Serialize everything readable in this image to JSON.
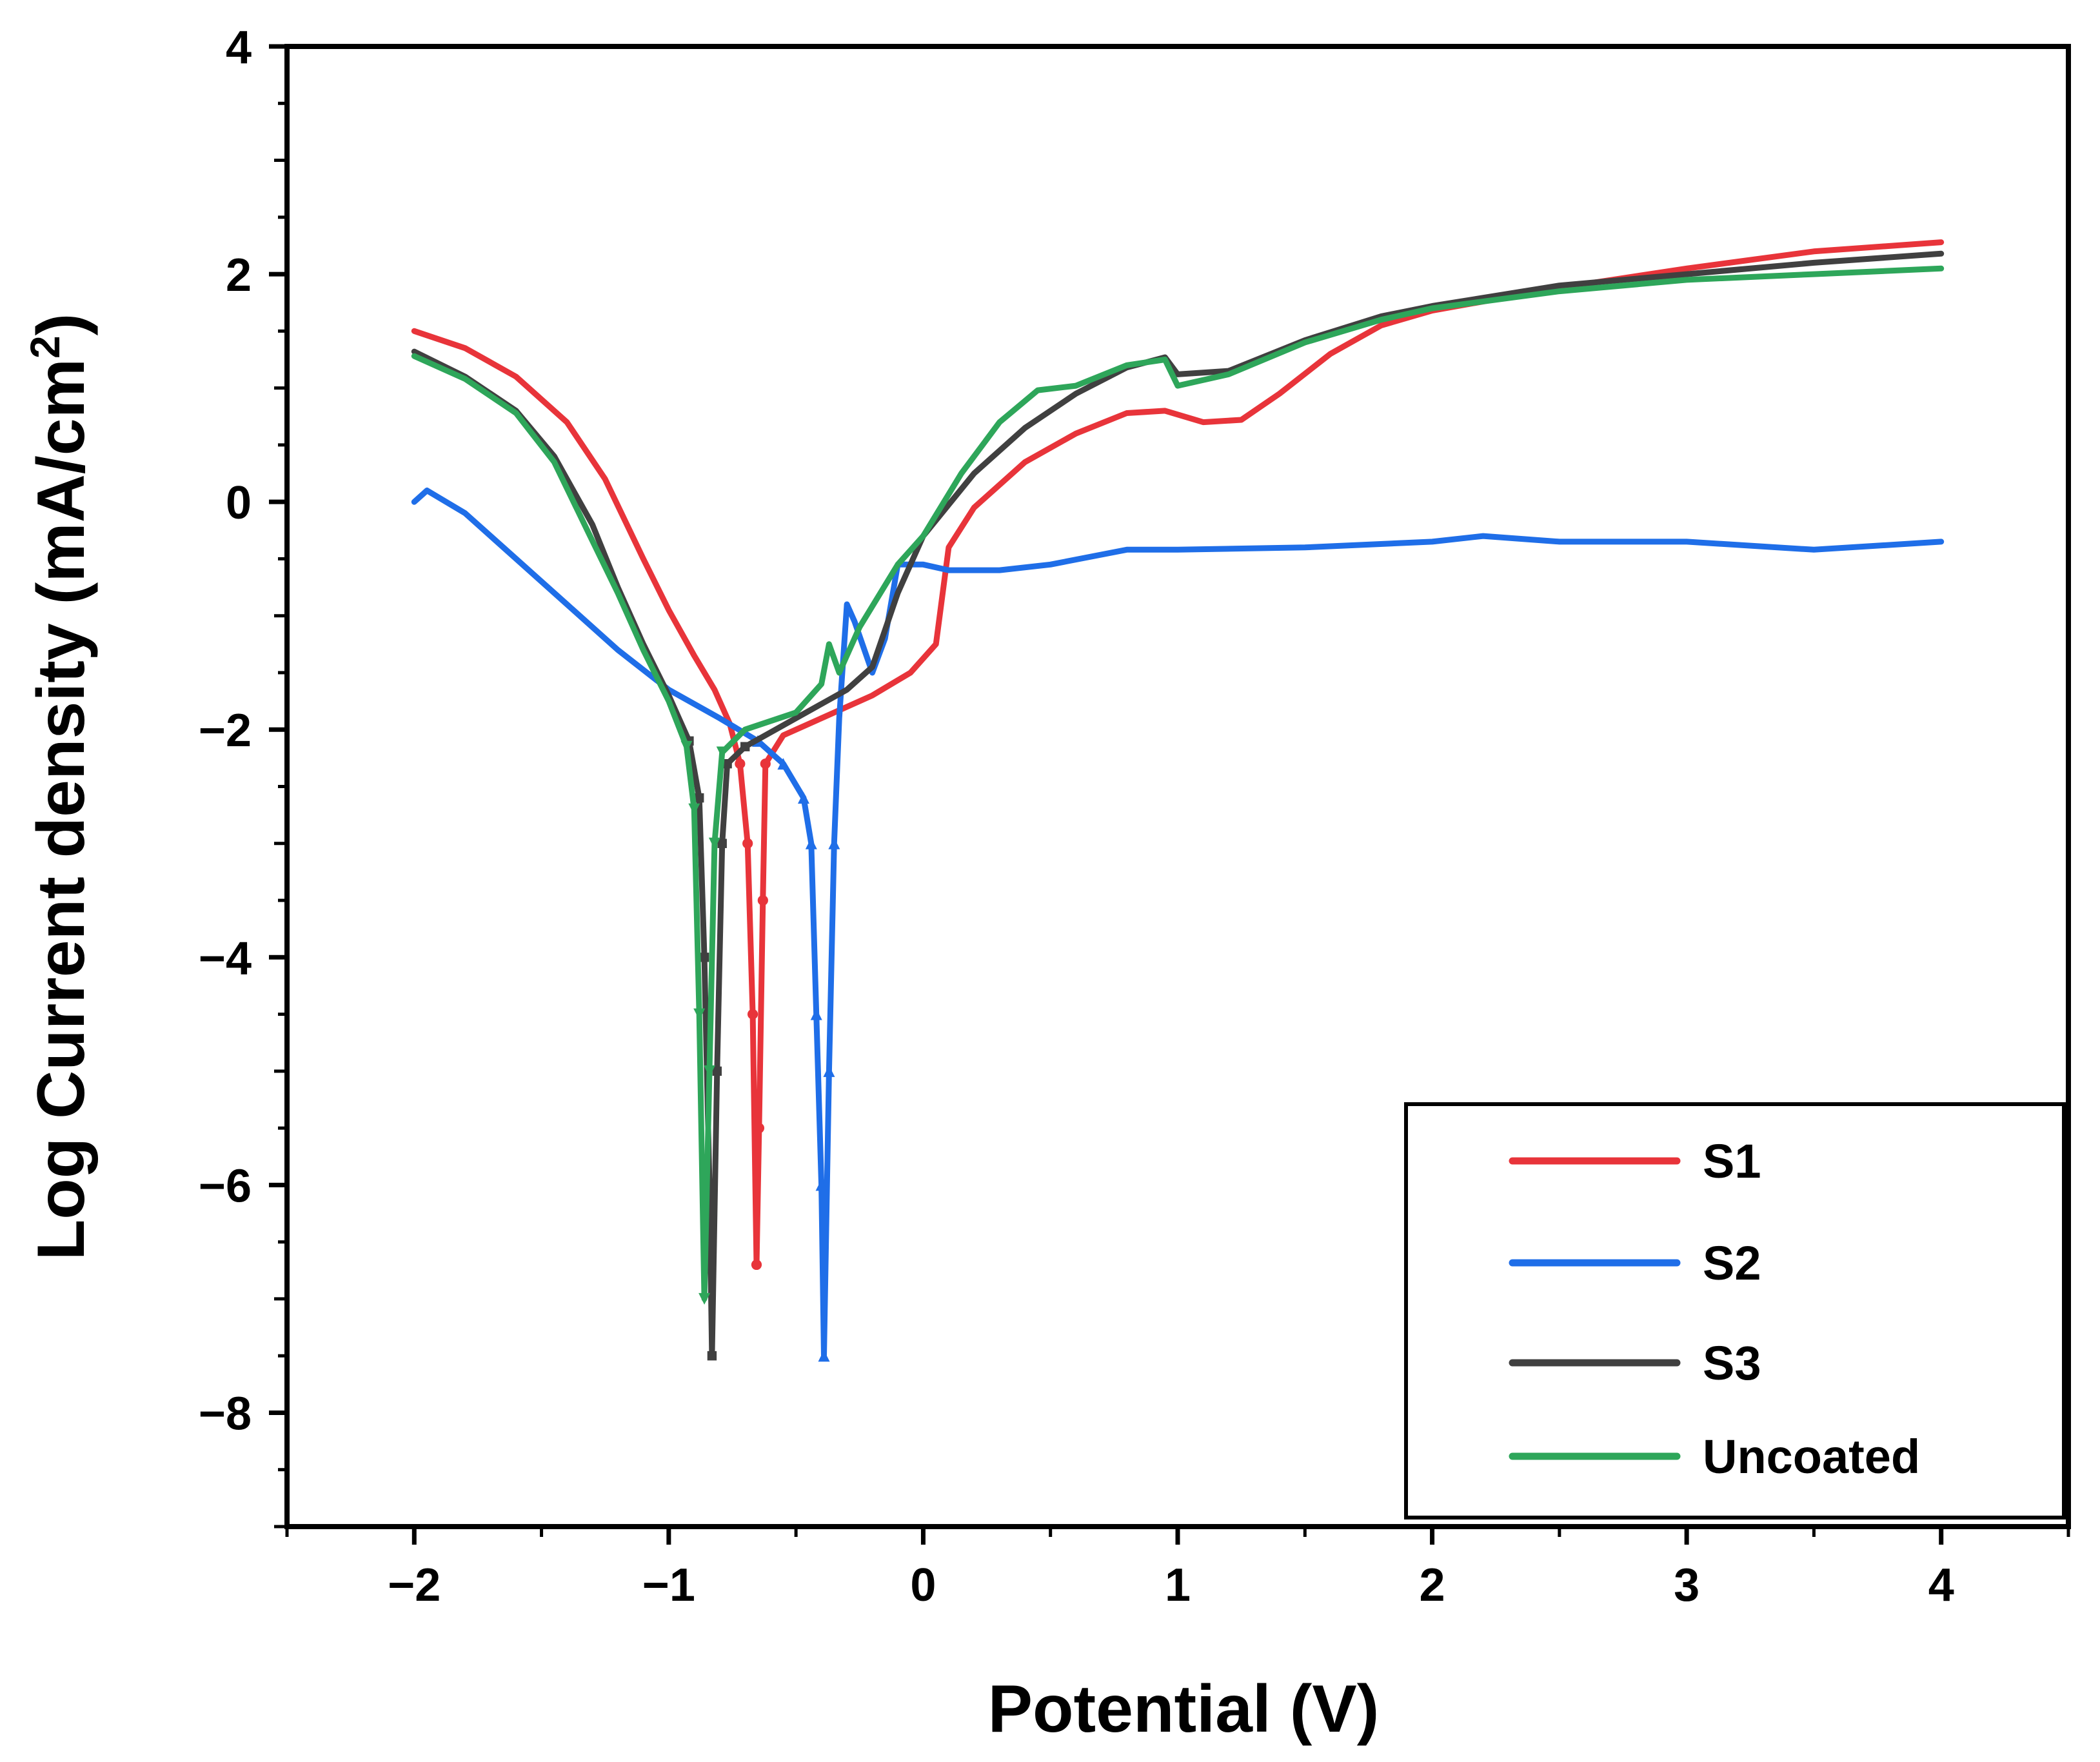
{
  "chart_data": {
    "type": "line",
    "xlabel": "Potential (V)",
    "ylabel_main": "Log Current density (mA/cm",
    "ylabel_sup": "2",
    "ylabel_end": ")",
    "xlim": [
      -2.5,
      4.5
    ],
    "ylim": [
      -9,
      4
    ],
    "xticks": [
      {
        "value": -2,
        "label": "−2"
      },
      {
        "value": -1,
        "label": "−1"
      },
      {
        "value": 0,
        "label": "0"
      },
      {
        "value": 1,
        "label": "1"
      },
      {
        "value": 2,
        "label": "2"
      },
      {
        "value": 3,
        "label": "3"
      },
      {
        "value": 4,
        "label": "4"
      }
    ],
    "yticks": [
      {
        "value": 4,
        "label": "4"
      },
      {
        "value": 2,
        "label": "2"
      },
      {
        "value": 0,
        "label": "0"
      },
      {
        "value": -2,
        "label": "−2"
      },
      {
        "value": -4,
        "label": "−4"
      },
      {
        "value": -6,
        "label": "−6"
      },
      {
        "value": -8,
        "label": "−8"
      }
    ],
    "legend_position": "bottom-right",
    "series": [
      {
        "name": "S1",
        "color": "#e8343a",
        "marker": "circle",
        "points": [
          [
            -2.0,
            1.5
          ],
          [
            -1.8,
            1.35
          ],
          [
            -1.6,
            1.1
          ],
          [
            -1.4,
            0.7
          ],
          [
            -1.25,
            0.2
          ],
          [
            -1.1,
            -0.5
          ],
          [
            -1.0,
            -0.95
          ],
          [
            -0.9,
            -1.35
          ],
          [
            -0.82,
            -1.65
          ],
          [
            -0.76,
            -1.95
          ],
          [
            -0.72,
            -2.3
          ],
          [
            -0.69,
            -3.0
          ],
          [
            -0.67,
            -4.5
          ],
          [
            -0.655,
            -6.7
          ],
          [
            -0.645,
            -5.5
          ],
          [
            -0.63,
            -3.5
          ],
          [
            -0.62,
            -2.3
          ],
          [
            -0.55,
            -2.05
          ],
          [
            -0.4,
            -1.9
          ],
          [
            -0.2,
            -1.7
          ],
          [
            -0.05,
            -1.5
          ],
          [
            0.05,
            -1.25
          ],
          [
            0.1,
            -0.4
          ],
          [
            0.2,
            -0.05
          ],
          [
            0.4,
            0.35
          ],
          [
            0.6,
            0.6
          ],
          [
            0.8,
            0.78
          ],
          [
            0.95,
            0.8
          ],
          [
            1.1,
            0.7
          ],
          [
            1.25,
            0.72
          ],
          [
            1.4,
            0.95
          ],
          [
            1.6,
            1.3
          ],
          [
            1.8,
            1.55
          ],
          [
            2.0,
            1.68
          ],
          [
            2.5,
            1.88
          ],
          [
            3.0,
            2.05
          ],
          [
            3.5,
            2.2
          ],
          [
            4.0,
            2.28
          ]
        ]
      },
      {
        "name": "S2",
        "color": "#1f6ee8",
        "marker": "triangle",
        "points": [
          [
            -2.0,
            0.0
          ],
          [
            -1.95,
            0.1
          ],
          [
            -1.8,
            -0.1
          ],
          [
            -1.6,
            -0.5
          ],
          [
            -1.4,
            -0.9
          ],
          [
            -1.2,
            -1.3
          ],
          [
            -1.0,
            -1.65
          ],
          [
            -0.8,
            -1.9
          ],
          [
            -0.65,
            -2.1
          ],
          [
            -0.55,
            -2.3
          ],
          [
            -0.47,
            -2.6
          ],
          [
            -0.44,
            -3.0
          ],
          [
            -0.42,
            -4.5
          ],
          [
            -0.4,
            -6.0
          ],
          [
            -0.39,
            -7.5
          ],
          [
            -0.37,
            -5.0
          ],
          [
            -0.35,
            -3.0
          ],
          [
            -0.33,
            -1.9
          ],
          [
            -0.3,
            -0.9
          ],
          [
            -0.27,
            -1.05
          ],
          [
            -0.2,
            -1.5
          ],
          [
            -0.15,
            -1.2
          ],
          [
            -0.1,
            -0.55
          ],
          [
            0.0,
            -0.55
          ],
          [
            0.1,
            -0.6
          ],
          [
            0.3,
            -0.6
          ],
          [
            0.5,
            -0.55
          ],
          [
            0.8,
            -0.42
          ],
          [
            1.0,
            -0.42
          ],
          [
            1.5,
            -0.4
          ],
          [
            2.0,
            -0.35
          ],
          [
            2.2,
            -0.3
          ],
          [
            2.5,
            -0.35
          ],
          [
            3.0,
            -0.35
          ],
          [
            3.5,
            -0.42
          ],
          [
            4.0,
            -0.35
          ]
        ]
      },
      {
        "name": "S3",
        "color": "#404040",
        "marker": "square",
        "points": [
          [
            -2.0,
            1.32
          ],
          [
            -1.8,
            1.1
          ],
          [
            -1.6,
            0.8
          ],
          [
            -1.45,
            0.4
          ],
          [
            -1.3,
            -0.2
          ],
          [
            -1.2,
            -0.75
          ],
          [
            -1.1,
            -1.25
          ],
          [
            -1.0,
            -1.7
          ],
          [
            -0.92,
            -2.1
          ],
          [
            -0.88,
            -2.6
          ],
          [
            -0.86,
            -4.0
          ],
          [
            -0.84,
            -6.0
          ],
          [
            -0.83,
            -7.5
          ],
          [
            -0.81,
            -5.0
          ],
          [
            -0.79,
            -3.0
          ],
          [
            -0.77,
            -2.3
          ],
          [
            -0.7,
            -2.15
          ],
          [
            -0.5,
            -1.9
          ],
          [
            -0.3,
            -1.65
          ],
          [
            -0.2,
            -1.45
          ],
          [
            -0.1,
            -0.8
          ],
          [
            0.0,
            -0.3
          ],
          [
            0.2,
            0.25
          ],
          [
            0.4,
            0.65
          ],
          [
            0.6,
            0.95
          ],
          [
            0.8,
            1.18
          ],
          [
            0.95,
            1.27
          ],
          [
            1.0,
            1.12
          ],
          [
            1.2,
            1.15
          ],
          [
            1.5,
            1.42
          ],
          [
            1.8,
            1.63
          ],
          [
            2.0,
            1.72
          ],
          [
            2.5,
            1.9
          ],
          [
            3.0,
            2.0
          ],
          [
            3.5,
            2.1
          ],
          [
            4.0,
            2.18
          ]
        ]
      },
      {
        "name": "Uncoated",
        "color": "#2ea65a",
        "marker": "triangle-down",
        "points": [
          [
            -2.0,
            1.28
          ],
          [
            -1.8,
            1.08
          ],
          [
            -1.6,
            0.78
          ],
          [
            -1.45,
            0.35
          ],
          [
            -1.32,
            -0.25
          ],
          [
            -1.2,
            -0.8
          ],
          [
            -1.1,
            -1.3
          ],
          [
            -1.0,
            -1.75
          ],
          [
            -0.93,
            -2.15
          ],
          [
            -0.9,
            -2.7
          ],
          [
            -0.88,
            -4.5
          ],
          [
            -0.86,
            -7.0
          ],
          [
            -0.84,
            -5.0
          ],
          [
            -0.82,
            -3.0
          ],
          [
            -0.79,
            -2.2
          ],
          [
            -0.7,
            -2.0
          ],
          [
            -0.5,
            -1.85
          ],
          [
            -0.4,
            -1.6
          ],
          [
            -0.37,
            -1.25
          ],
          [
            -0.33,
            -1.5
          ],
          [
            -0.25,
            -1.1
          ],
          [
            -0.1,
            -0.55
          ],
          [
            0.0,
            -0.3
          ],
          [
            0.15,
            0.25
          ],
          [
            0.3,
            0.7
          ],
          [
            0.45,
            0.98
          ],
          [
            0.6,
            1.02
          ],
          [
            0.8,
            1.2
          ],
          [
            0.95,
            1.25
          ],
          [
            1.0,
            1.02
          ],
          [
            1.2,
            1.12
          ],
          [
            1.5,
            1.4
          ],
          [
            1.8,
            1.6
          ],
          [
            2.0,
            1.7
          ],
          [
            2.5,
            1.85
          ],
          [
            3.0,
            1.95
          ],
          [
            3.5,
            2.0
          ],
          [
            4.0,
            2.05
          ]
        ]
      }
    ]
  }
}
